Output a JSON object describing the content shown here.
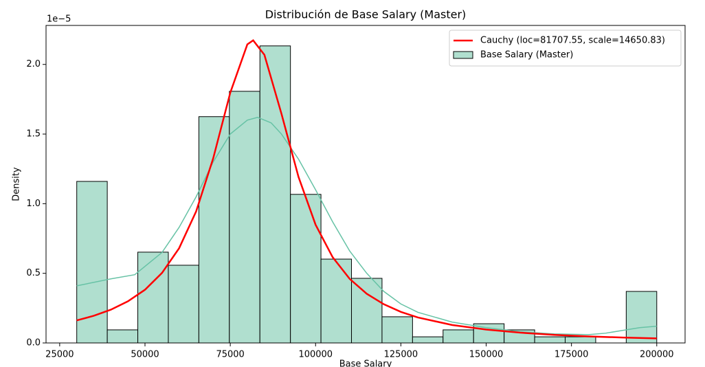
{
  "chart_data": {
    "type": "histogram",
    "title": "Distribución de Base Salary (Master)",
    "xlabel": "Base Salary",
    "ylabel": "Density",
    "y_offset_text": "1e−5",
    "name": "Base Salary (Master)",
    "color": "#b0dfcf",
    "edgecolor": "#000000",
    "bins": [
      30000,
      38947,
      47895,
      56842,
      65789,
      74737,
      83684,
      92632,
      101579,
      110526,
      119474,
      128421,
      137368,
      146316,
      155263,
      164211,
      173158,
      182105,
      191053,
      200000
    ],
    "values": [
      1.16,
      0.094,
      0.652,
      0.558,
      1.625,
      1.807,
      2.133,
      1.067,
      0.602,
      0.464,
      0.188,
      0.044,
      0.094,
      0.138,
      0.094,
      0.044,
      0.044,
      0,
      0.37
    ],
    "kde": {
      "color": "#66c2a5",
      "x": [
        30000,
        40000,
        47000,
        50000,
        55000,
        60000,
        65000,
        70000,
        75000,
        80000,
        83000,
        87000,
        90000,
        95000,
        100000,
        105000,
        110000,
        115000,
        120000,
        125000,
        130000,
        140000,
        150000,
        160000,
        170000,
        180000,
        185000,
        190000,
        195000,
        200000
      ],
      "values": [
        0.41,
        0.46,
        0.49,
        0.55,
        0.65,
        0.83,
        1.05,
        1.3,
        1.5,
        1.6,
        1.62,
        1.58,
        1.5,
        1.32,
        1.1,
        0.87,
        0.66,
        0.5,
        0.37,
        0.28,
        0.22,
        0.15,
        0.11,
        0.08,
        0.065,
        0.06,
        0.07,
        0.09,
        0.11,
        0.12
      ]
    },
    "series": [
      {
        "name": "Cauchy (loc=81707.55, scale=14650.83)",
        "color": "#ff0000",
        "x": [
          30000,
          35000,
          40000,
          45000,
          50000,
          55000,
          60000,
          65000,
          70000,
          75000,
          80000,
          81708,
          85000,
          90000,
          95000,
          100000,
          105000,
          110000,
          115000,
          120000,
          125000,
          130000,
          140000,
          150000,
          160000,
          170000,
          180000,
          190000,
          200000
        ],
        "values": [
          0.162,
          0.195,
          0.239,
          0.299,
          0.382,
          0.503,
          0.68,
          0.945,
          1.326,
          1.797,
          2.144,
          2.173,
          2.069,
          1.646,
          1.192,
          0.849,
          0.616,
          0.46,
          0.353,
          0.278,
          0.223,
          0.183,
          0.129,
          0.096,
          0.074,
          0.058,
          0.047,
          0.039,
          0.033
        ]
      }
    ],
    "xlim": [
      21000,
      208300
    ],
    "ylim": [
      0,
      2.28
    ],
    "xticks": [
      25000,
      50000,
      75000,
      100000,
      125000,
      150000,
      175000,
      200000
    ],
    "yticks": [
      {
        "value": 0,
        "label": "0.0"
      },
      0.5,
      {
        "value": 1,
        "label": "1.0"
      },
      1.5,
      {
        "value": 2,
        "label": "2.0"
      }
    ],
    "legend": "upper right"
  }
}
